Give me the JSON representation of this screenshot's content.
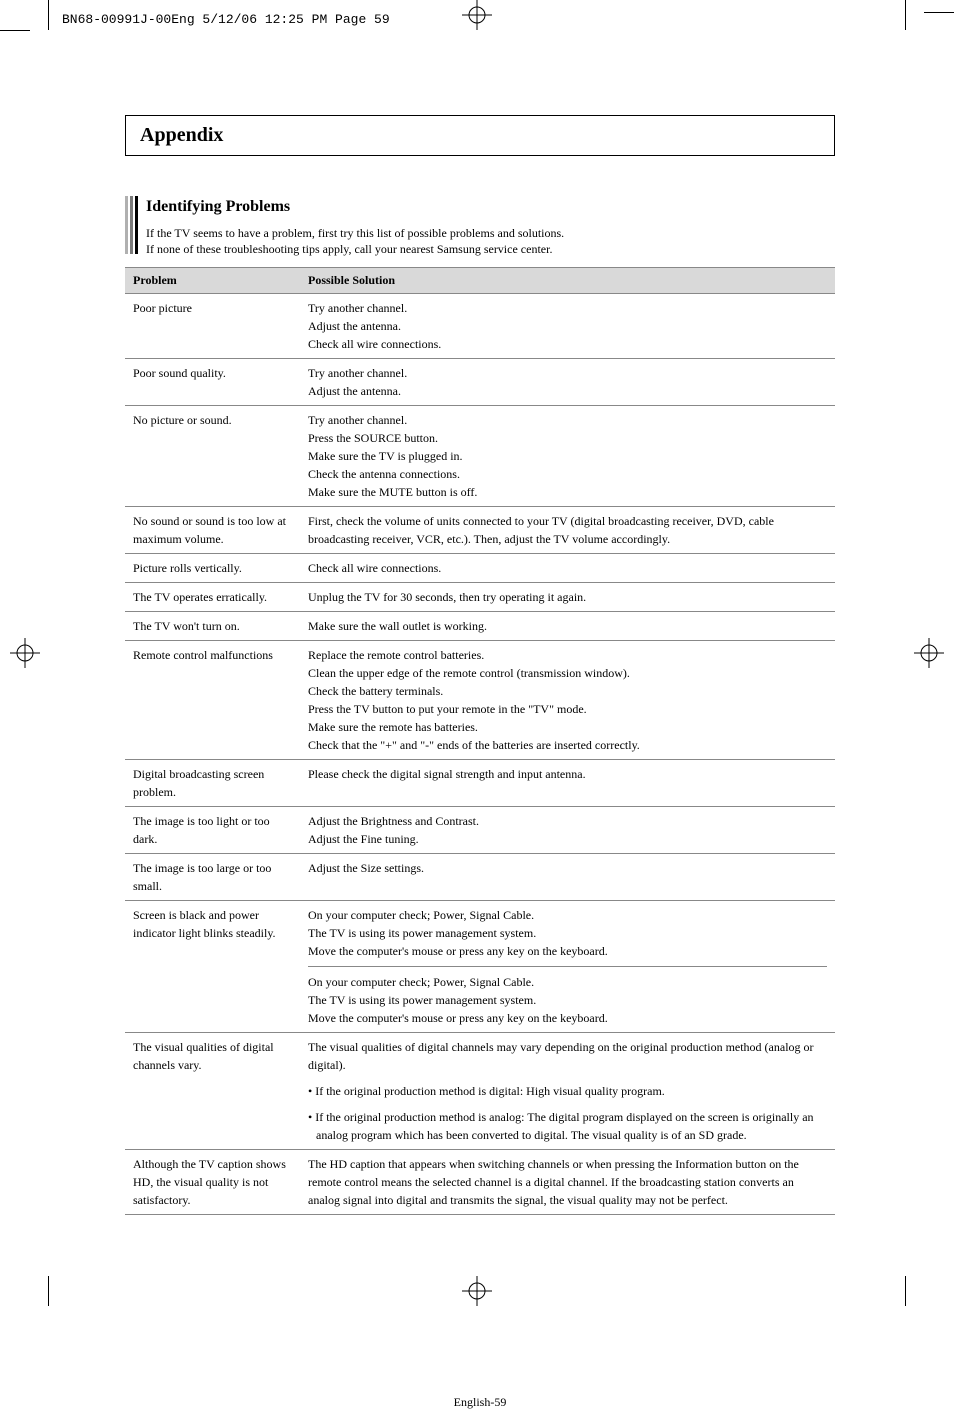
{
  "print_header": "BN68-00991J-00Eng  5/12/06  12:25 PM  Page 59",
  "appendix_title": "Appendix",
  "section_title": "Identifying Problems",
  "intro_line1": "If the TV seems to have a problem, first try this list of possible problems and solutions.",
  "intro_line2": "If none of these troubleshooting tips apply, call your nearest Samsung service center.",
  "table": {
    "header_problem": "Problem",
    "header_solution": "Possible Solution",
    "rows": [
      {
        "problem": "Poor picture",
        "solution": "Try another channel.\nAdjust the antenna.\nCheck all wire connections."
      },
      {
        "problem": "Poor sound quality.",
        "solution": "Try another channel.\nAdjust the antenna."
      },
      {
        "problem": "No picture or sound.",
        "solution": "Try another channel.\nPress the SOURCE button.\nMake sure the TV is plugged in.\nCheck the antenna connections.\nMake sure the MUTE button is off."
      },
      {
        "problem": "No sound or sound is too low at maximum volume.",
        "solution": "First, check the volume of units connected to your TV (digital broadcasting receiver, DVD, cable broadcasting receiver, VCR, etc.). Then, adjust the TV volume accordingly."
      },
      {
        "problem": "Picture rolls vertically.",
        "solution": "Check all wire connections."
      },
      {
        "problem": "The TV operates erratically.",
        "solution": "Unplug the TV for 30 seconds, then try operating it again."
      },
      {
        "problem": "The TV won't turn on.",
        "solution": "Make sure the wall outlet is working."
      },
      {
        "problem": "Remote control malfunctions",
        "solution": "Replace the remote control batteries.\nClean the upper edge of the remote control (transmission window).\nCheck the battery terminals.\nPress the TV button to put your remote in the \"TV\" mode.\nMake sure the remote has batteries.\nCheck that the \"+\" and \"-\" ends of the batteries are inserted correctly."
      },
      {
        "problem": "Digital broadcasting screen problem.",
        "solution": "Please check the digital signal strength and input antenna."
      },
      {
        "problem": "The image is too light or too dark.",
        "solution": "Adjust the Brightness and Contrast.\nAdjust the Fine tuning."
      },
      {
        "problem": "The image is too large or too small.",
        "solution": "Adjust the Size settings."
      },
      {
        "problem": "Screen is black and power indicator light blinks steadily.",
        "solution_a": "On your computer check; Power, Signal Cable.\nThe TV is using its power management system.\nMove the computer's mouse or press any key on the keyboard.",
        "solution_b": "On your computer check; Power, Signal Cable.\nThe TV is using its power management system.\nMove the computer's mouse or press any key on the keyboard."
      },
      {
        "problem": "The visual qualities of digital channels vary.",
        "solution_a": "The visual qualities of digital channels may vary depending on the original production method (analog or digital).",
        "solution_b": "• If the original production method is digital: High visual quality program.",
        "solution_c": "• If the original production method is analog: The digital program displayed on the screen is originally an analog program which has been converted to digital. The visual quality is of an SD grade."
      },
      {
        "problem": "Although the TV caption shows HD, the visual quality is not satisfactory.",
        "solution": "The HD caption that appears when switching channels or when pressing the Information button on the remote control means the selected channel is a digital channel. If the broadcasting station converts an analog signal into digital and transmits the signal, the visual quality may not be perfect."
      }
    ]
  },
  "page_number": "English-59"
}
